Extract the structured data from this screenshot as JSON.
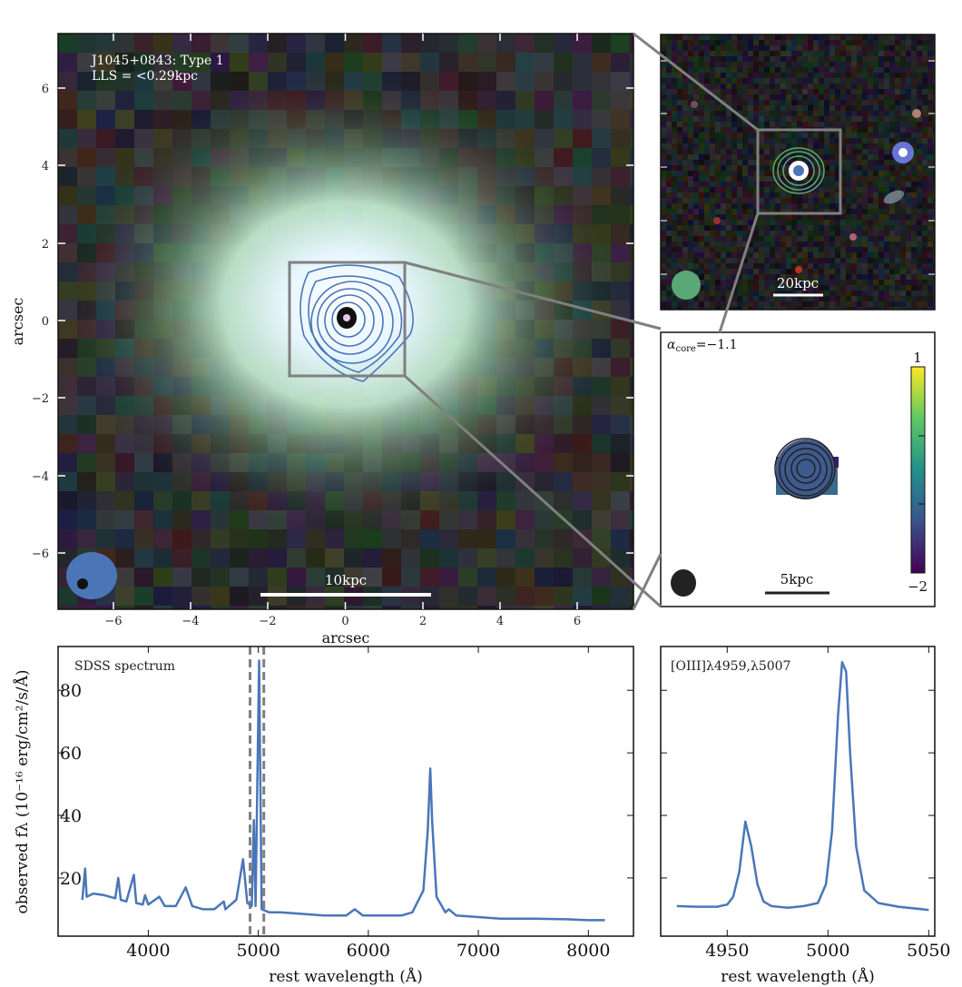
{
  "main_image": {
    "title_line1": "J1045+0843: Type 1",
    "title_line2": "LLS = <0.29kpc",
    "xlabel": "arcsec",
    "ylabel": "arcsec",
    "x_ticks": [
      "−6",
      "−4",
      "−2",
      "0",
      "2",
      "4",
      "6"
    ],
    "y_ticks": [
      "6",
      "4",
      "2",
      "0",
      "−2",
      "−4",
      "−6"
    ],
    "scalebar_label": "10kpc",
    "contour_color": "#4a76b8",
    "beam_color": "#4a76b8"
  },
  "wide_image": {
    "scalebar_label": "20kpc",
    "beam_color": "#5aa878"
  },
  "spectral_index_map": {
    "label_symbol": "α",
    "label_sub": "core",
    "label_value": "=−1.1",
    "colorbar_max": "1",
    "colorbar_min": "−2",
    "colormap": "viridis",
    "scalebar_label": "5kpc"
  },
  "chart_data": [
    {
      "type": "line",
      "title": "SDSS spectrum",
      "xlabel": "rest wavelength (Å)",
      "ylabel": "observed fλ (10⁻¹⁶ erg/cm²/s/Å)",
      "xlim": [
        3180,
        8410
      ],
      "ylim": [
        1.4,
        94
      ],
      "x_ticks": [
        4000,
        5000,
        6000,
        7000,
        8000
      ],
      "y_ticks": [
        20,
        40,
        60,
        80
      ],
      "color": "#4a76b8",
      "dashed_lines_x": [
        4925,
        5050
      ],
      "x": [
        3400,
        3426,
        3440,
        3500,
        3600,
        3700,
        3727,
        3750,
        3800,
        3869,
        3890,
        3950,
        3970,
        4000,
        4100,
        4150,
        4250,
        4340,
        4400,
        4500,
        4600,
        4686,
        4700,
        4800,
        4861,
        4900,
        4940,
        4959,
        4975,
        5007,
        5030,
        5100,
        5200,
        5400,
        5600,
        5800,
        5876,
        5950,
        6100,
        6300,
        6400,
        6500,
        6540,
        6563,
        6580,
        6620,
        6700,
        6731,
        6800,
        7000,
        7200,
        7500,
        7800,
        8000,
        8150
      ],
      "y": [
        13,
        23,
        14,
        15,
        14.5,
        13.5,
        20,
        13,
        12.5,
        21,
        12,
        11.5,
        14.5,
        11.5,
        14,
        11,
        11,
        17,
        11,
        10,
        10,
        12.5,
        10,
        13,
        26,
        12,
        11,
        38.5,
        11,
        89.5,
        10,
        9,
        9,
        8.5,
        8,
        8,
        10,
        8,
        8,
        8,
        9,
        16,
        35,
        55,
        38,
        14,
        9,
        10,
        8,
        7.5,
        7,
        7,
        6.8,
        6.5,
        6.5
      ]
    },
    {
      "type": "line",
      "title": "[OIII]λ4959,λ5007",
      "xlabel": "rest wavelength (Å)",
      "xlim": [
        4917,
        5053
      ],
      "ylim": [
        1.4,
        94
      ],
      "x_ticks": [
        4950,
        5000,
        5050
      ],
      "color": "#4a76b8",
      "x": [
        4925,
        4935,
        4945,
        4950,
        4953,
        4956,
        4959,
        4962,
        4965,
        4968,
        4972,
        4980,
        4988,
        4995,
        4999,
        5002,
        5005,
        5007,
        5009,
        5011,
        5014,
        5018,
        5025,
        5035,
        5050
      ],
      "y": [
        11,
        10.8,
        10.8,
        11.5,
        14,
        22,
        38,
        30,
        18,
        12.5,
        11,
        10.5,
        11,
        12,
        18,
        35,
        72,
        89,
        86,
        60,
        30,
        16,
        12,
        10.8,
        9.8
      ]
    }
  ]
}
